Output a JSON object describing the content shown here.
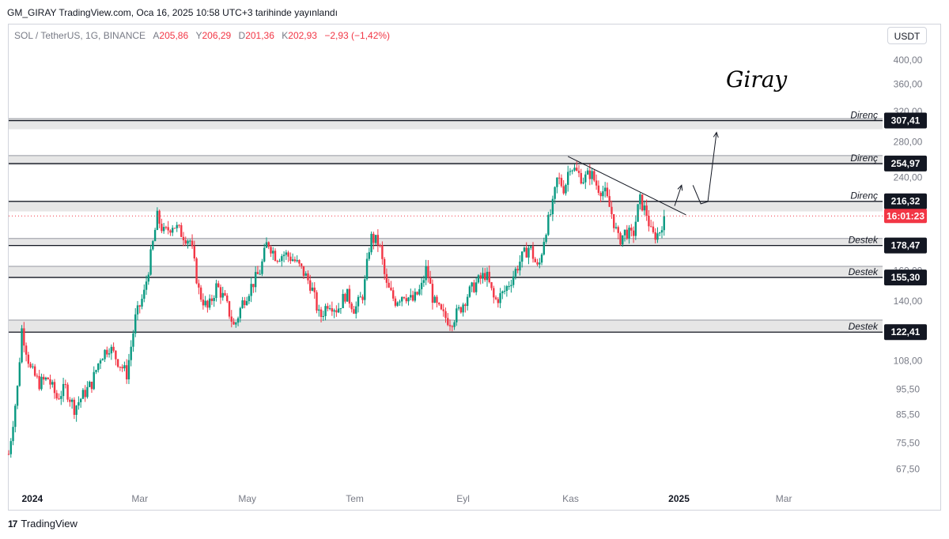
{
  "header": {
    "published": "GM_GIRAY TradingView.com, Oca 16, 2025 10:58 UTC+3 tarihinde yayınlandı"
  },
  "legend": {
    "symbol": "SOL / TetherUS, 1G, BINANCE",
    "open_label": "A",
    "open": "205,86",
    "high_label": "Y",
    "high": "206,29",
    "low_label": "D",
    "low": "201,36",
    "close_label": "K",
    "close": "202,93",
    "change": "−2,93 (−1,42%)"
  },
  "currency_button": "USDT",
  "signature": "Giray",
  "brand": {
    "logo": "17",
    "name": "TradingView"
  },
  "colors": {
    "up": "#089981",
    "down": "#f23645",
    "zone_fill": "#e6e6e6",
    "level_line": "#131722",
    "badge_bg": "#131722",
    "price_badge": "#f23645"
  },
  "chart_data": {
    "type": "candlestick",
    "symbol": "SOL / TetherUS",
    "interval": "1G",
    "exchange": "BINANCE",
    "y_scale": "log",
    "ylim": [
      62,
      430
    ],
    "y_ticks": [
      "400,00",
      "360,00",
      "320,00",
      "280,00",
      "240,00",
      "160,00",
      "140,00",
      "108,00",
      "95,50",
      "85,50",
      "75,50",
      "67,50"
    ],
    "y_tick_values": [
      400,
      360,
      320,
      280,
      240,
      160,
      140,
      108,
      95.5,
      85.5,
      75.5,
      67.5
    ],
    "x_ticks": [
      "2024",
      "Mar",
      "May",
      "Tem",
      "Eyl",
      "Kas",
      "2025",
      "Mar"
    ],
    "x_tick_bold": [
      true,
      false,
      false,
      false,
      false,
      false,
      true,
      false
    ],
    "last_price": {
      "value": 202.93,
      "countdown": "16:01:23"
    },
    "levels": [
      {
        "label": "Direnç",
        "value": 307.41,
        "badge": "307,41",
        "zone": [
          296,
          310
        ]
      },
      {
        "label": "Direnç",
        "value": 254.97,
        "badge": "254,97",
        "zone": [
          253,
          264
        ]
      },
      {
        "label": "Direnç",
        "value": 216.32,
        "badge": "216,32",
        "zone": [
          207,
          216
        ]
      },
      {
        "label": "Destek",
        "value": 178.47,
        "badge": "178,47",
        "zone": [
          178,
          184
        ]
      },
      {
        "label": "Destek",
        "value": 155.3,
        "badge": "155,30",
        "zone": [
          155,
          163
        ]
      },
      {
        "label": "Destek",
        "value": 122.41,
        "badge": "122,41",
        "zone": [
          122,
          129
        ]
      }
    ],
    "trendline": {
      "from": [
        0.64,
        263
      ],
      "to": [
        0.775,
        204
      ]
    },
    "projection_arrows": [
      {
        "path": [
          [
            0.762,
            212
          ],
          [
            0.77,
            232
          ]
        ]
      },
      {
        "path": [
          [
            0.783,
            232
          ],
          [
            0.792,
            214
          ],
          [
            0.8,
            216
          ],
          [
            0.81,
            292
          ]
        ]
      }
    ],
    "series": [
      {
        "t": 0.0,
        "c": 72
      },
      {
        "t": 0.01,
        "c": 96
      },
      {
        "t": 0.015,
        "c": 124
      },
      {
        "t": 0.025,
        "c": 104
      },
      {
        "t": 0.035,
        "c": 98
      },
      {
        "t": 0.045,
        "c": 100
      },
      {
        "t": 0.055,
        "c": 92
      },
      {
        "t": 0.065,
        "c": 96
      },
      {
        "t": 0.075,
        "c": 88
      },
      {
        "t": 0.085,
        "c": 93
      },
      {
        "t": 0.095,
        "c": 98
      },
      {
        "t": 0.105,
        "c": 110
      },
      {
        "t": 0.115,
        "c": 115
      },
      {
        "t": 0.125,
        "c": 108
      },
      {
        "t": 0.135,
        "c": 102
      },
      {
        "t": 0.145,
        "c": 130
      },
      {
        "t": 0.155,
        "c": 145
      },
      {
        "t": 0.165,
        "c": 180
      },
      {
        "t": 0.17,
        "c": 202
      },
      {
        "t": 0.178,
        "c": 188
      },
      {
        "t": 0.188,
        "c": 196
      },
      {
        "t": 0.198,
        "c": 188
      },
      {
        "t": 0.208,
        "c": 182
      },
      {
        "t": 0.218,
        "c": 145
      },
      {
        "t": 0.228,
        "c": 135
      },
      {
        "t": 0.238,
        "c": 150
      },
      {
        "t": 0.248,
        "c": 140
      },
      {
        "t": 0.258,
        "c": 125
      },
      {
        "t": 0.268,
        "c": 140
      },
      {
        "t": 0.278,
        "c": 150
      },
      {
        "t": 0.288,
        "c": 160
      },
      {
        "t": 0.296,
        "c": 182
      },
      {
        "t": 0.306,
        "c": 170
      },
      {
        "t": 0.316,
        "c": 172
      },
      {
        "t": 0.326,
        "c": 168
      },
      {
        "t": 0.336,
        "c": 160
      },
      {
        "t": 0.346,
        "c": 150
      },
      {
        "t": 0.356,
        "c": 130
      },
      {
        "t": 0.366,
        "c": 140
      },
      {
        "t": 0.376,
        "c": 135
      },
      {
        "t": 0.386,
        "c": 145
      },
      {
        "t": 0.396,
        "c": 135
      },
      {
        "t": 0.406,
        "c": 145
      },
      {
        "t": 0.414,
        "c": 185
      },
      {
        "t": 0.424,
        "c": 180
      },
      {
        "t": 0.432,
        "c": 150
      },
      {
        "t": 0.442,
        "c": 140
      },
      {
        "t": 0.452,
        "c": 145
      },
      {
        "t": 0.462,
        "c": 140
      },
      {
        "t": 0.472,
        "c": 148
      },
      {
        "t": 0.478,
        "c": 162
      },
      {
        "t": 0.486,
        "c": 140
      },
      {
        "t": 0.496,
        "c": 132
      },
      {
        "t": 0.506,
        "c": 128
      },
      {
        "t": 0.516,
        "c": 135
      },
      {
        "t": 0.526,
        "c": 145
      },
      {
        "t": 0.536,
        "c": 152
      },
      {
        "t": 0.546,
        "c": 158
      },
      {
        "t": 0.556,
        "c": 140
      },
      {
        "t": 0.566,
        "c": 145
      },
      {
        "t": 0.576,
        "c": 155
      },
      {
        "t": 0.586,
        "c": 168
      },
      {
        "t": 0.596,
        "c": 178
      },
      {
        "t": 0.606,
        "c": 160
      },
      {
        "t": 0.614,
        "c": 190
      },
      {
        "t": 0.622,
        "c": 210
      },
      {
        "t": 0.628,
        "c": 240
      },
      {
        "t": 0.636,
        "c": 228
      },
      {
        "t": 0.642,
        "c": 255
      },
      {
        "t": 0.65,
        "c": 245
      },
      {
        "t": 0.658,
        "c": 238
      },
      {
        "t": 0.666,
        "c": 245
      },
      {
        "t": 0.674,
        "c": 230
      },
      {
        "t": 0.682,
        "c": 225
      },
      {
        "t": 0.69,
        "c": 205
      },
      {
        "t": 0.698,
        "c": 182
      },
      {
        "t": 0.706,
        "c": 190
      },
      {
        "t": 0.714,
        "c": 185
      },
      {
        "t": 0.722,
        "c": 218
      },
      {
        "t": 0.73,
        "c": 205
      },
      {
        "t": 0.736,
        "c": 186
      },
      {
        "t": 0.744,
        "c": 188
      },
      {
        "t": 0.75,
        "c": 202.93
      }
    ]
  }
}
